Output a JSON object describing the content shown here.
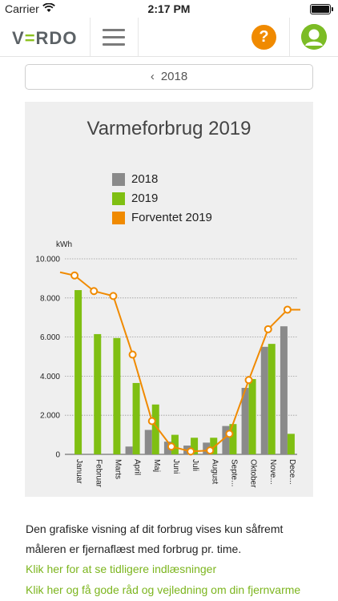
{
  "status_bar": {
    "carrier": "Carrier",
    "time": "2:17 PM"
  },
  "nav": {
    "logo_prefix": "V",
    "logo_accent": "=",
    "logo_suffix": "RDO",
    "help_label": "?"
  },
  "year_selector": {
    "label": "2018"
  },
  "chart_data": {
    "type": "bar",
    "title": "Varmeforbrug 2019",
    "ylabel": "kWh",
    "ylim": [
      0,
      10000
    ],
    "yticks": [
      "0",
      "2.000",
      "4.000",
      "6.000",
      "8.000",
      "10.000"
    ],
    "categories": [
      "Januar",
      "Februar",
      "Marts",
      "April",
      "Maj",
      "Juni",
      "Juli",
      "August",
      "Septe...",
      "Oktober",
      "Nove...",
      "Dece..."
    ],
    "series": [
      {
        "name": "2018",
        "type": "bar",
        "color": "#8a8a8a",
        "values": [
          0,
          0,
          0,
          400,
          1250,
          650,
          450,
          600,
          1450,
          3400,
          5500,
          6550
        ]
      },
      {
        "name": "2019",
        "type": "bar",
        "color": "#7fbf12",
        "values": [
          8400,
          6150,
          5950,
          3650,
          2550,
          1000,
          850,
          850,
          1550,
          3850,
          5650,
          1050
        ]
      },
      {
        "name": "Forventet 2019",
        "type": "line",
        "color": "#f08a00",
        "values": [
          9150,
          8350,
          8100,
          5100,
          1700,
          400,
          150,
          200,
          1050,
          3800,
          6400,
          7400
        ]
      }
    ],
    "grid": true,
    "legend_position": "top-left"
  },
  "info": {
    "text": "Den grafiske visning af dit forbrug vises kun såfremt måleren er fjernaflæst med forbrug pr. time.",
    "link_history": "Klik her for at se tidligere indlæsninger",
    "link_advice": "Klik her og få gode råd og vejledning om din fjernvarme"
  }
}
